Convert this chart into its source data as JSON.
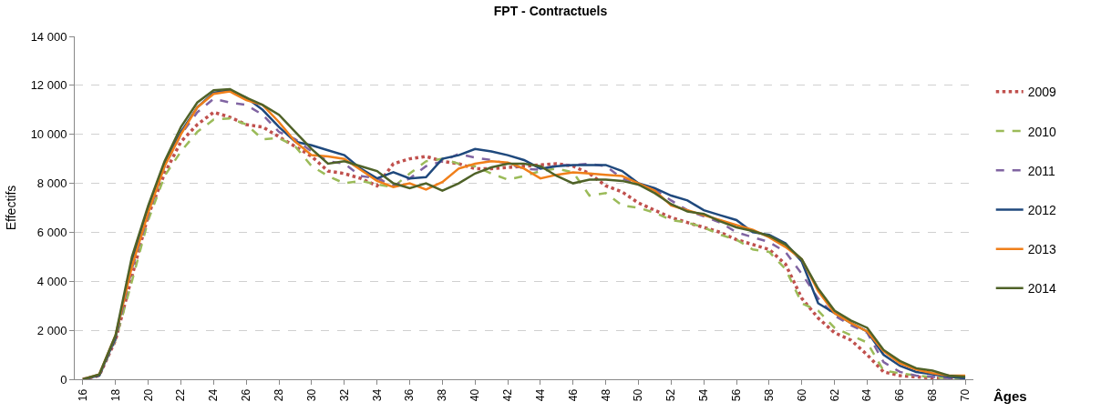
{
  "chart_data": {
    "type": "line",
    "title": "FPT - Contractuels",
    "xlabel": "Âges",
    "ylabel": "Effectifs",
    "x": [
      16,
      17,
      18,
      19,
      20,
      21,
      22,
      23,
      24,
      25,
      26,
      27,
      28,
      29,
      30,
      31,
      32,
      33,
      34,
      35,
      36,
      37,
      38,
      39,
      40,
      41,
      42,
      43,
      44,
      45,
      46,
      47,
      48,
      49,
      50,
      51,
      52,
      53,
      54,
      55,
      56,
      57,
      58,
      59,
      60,
      61,
      62,
      63,
      64,
      65,
      66,
      67,
      68,
      69,
      70
    ],
    "xlim": [
      15.5,
      70.5
    ],
    "xticks": [
      16,
      18,
      20,
      22,
      24,
      26,
      28,
      30,
      32,
      34,
      36,
      38,
      40,
      42,
      44,
      46,
      48,
      50,
      52,
      54,
      56,
      58,
      60,
      62,
      64,
      66,
      68,
      70
    ],
    "ylim": [
      0,
      14000
    ],
    "yticks": [
      {
        "value": 0,
        "label": "0"
      },
      {
        "value": 2000,
        "label": "2 000"
      },
      {
        "value": 4000,
        "label": "4 000"
      },
      {
        "value": 6000,
        "label": "6 000"
      },
      {
        "value": 8000,
        "label": "8 000"
      },
      {
        "value": 10000,
        "label": "10 000"
      },
      {
        "value": 12000,
        "label": "12 000"
      },
      {
        "value": 14000,
        "label": "14 000"
      }
    ],
    "grid": "y",
    "legend": "right",
    "series": [
      {
        "name": "2009",
        "color": "#c0504d",
        "line_style": "dotted",
        "values": [
          0,
          150,
          1600,
          4200,
          6700,
          8400,
          9700,
          10400,
          10900,
          10700,
          10400,
          10300,
          9900,
          9500,
          9100,
          8500,
          8400,
          8200,
          7900,
          8800,
          9000,
          9100,
          8900,
          8800,
          8600,
          8600,
          8650,
          8700,
          8750,
          8800,
          8700,
          8400,
          7900,
          7650,
          7200,
          6900,
          6600,
          6400,
          6200,
          6000,
          5700,
          5500,
          5300,
          4700,
          3300,
          2500,
          1900,
          1600,
          1000,
          300,
          150,
          100,
          50,
          30,
          20
        ]
      },
      {
        "name": "2010",
        "color": "#9bbb59",
        "line_style": "dashed",
        "values": [
          0,
          150,
          1600,
          4000,
          6500,
          8300,
          9300,
          10100,
          10600,
          10650,
          10400,
          9800,
          9850,
          9500,
          8700,
          8300,
          8000,
          8100,
          7950,
          7850,
          8400,
          8900,
          9000,
          8800,
          8700,
          8400,
          8150,
          8300,
          8500,
          8600,
          8450,
          7500,
          7600,
          7100,
          7000,
          6800,
          6500,
          6400,
          6200,
          5900,
          5700,
          5300,
          5200,
          4500,
          3100,
          2800,
          2100,
          1800,
          1500,
          350,
          250,
          150,
          80,
          40,
          20
        ]
      },
      {
        "name": "2011",
        "color": "#8064a2",
        "line_style": "dashed",
        "values": [
          0,
          150,
          1650,
          4500,
          6700,
          8700,
          10000,
          10900,
          11450,
          11300,
          11200,
          10800,
          10100,
          9800,
          9300,
          8900,
          8800,
          8300,
          8200,
          7900,
          8200,
          8700,
          8900,
          9200,
          9050,
          8950,
          8800,
          8600,
          8550,
          8750,
          8750,
          8800,
          8700,
          8200,
          7950,
          7750,
          7300,
          6900,
          6650,
          6400,
          6000,
          5800,
          5600,
          5200,
          4300,
          3300,
          2600,
          2200,
          1900,
          700,
          300,
          150,
          100,
          50,
          30
        ]
      },
      {
        "name": "2012",
        "color": "#1f497d",
        "line_style": "solid",
        "values": [
          0,
          150,
          1700,
          4800,
          7000,
          8800,
          10100,
          11100,
          11700,
          11800,
          11500,
          11000,
          10300,
          9700,
          9550,
          9350,
          9150,
          8600,
          8200,
          8450,
          8200,
          8250,
          9000,
          9150,
          9400,
          9300,
          9150,
          8950,
          8600,
          8700,
          8750,
          8750,
          8750,
          8500,
          8000,
          7800,
          7500,
          7300,
          6900,
          6700,
          6500,
          6000,
          5900,
          5550,
          4800,
          3100,
          2700,
          2300,
          1950,
          1000,
          550,
          300,
          200,
          100,
          50
        ]
      },
      {
        "name": "2013",
        "color": "#f07f1a",
        "line_style": "solid",
        "values": [
          0,
          200,
          1800,
          4600,
          6800,
          8700,
          10000,
          11100,
          11650,
          11750,
          11400,
          11200,
          10500,
          9700,
          9150,
          9100,
          9000,
          8550,
          8100,
          7850,
          8000,
          7750,
          8050,
          8600,
          8800,
          8900,
          8850,
          8600,
          8200,
          8350,
          8450,
          8400,
          8350,
          8300,
          8000,
          7700,
          7100,
          6900,
          6700,
          6500,
          6300,
          6100,
          5800,
          5400,
          4900,
          3600,
          2700,
          2300,
          1950,
          1150,
          650,
          400,
          250,
          150,
          150
        ]
      },
      {
        "name": "2014",
        "color": "#4f6228",
        "line_style": "solid",
        "values": [
          0,
          200,
          1800,
          5000,
          7100,
          8900,
          10300,
          11300,
          11800,
          11850,
          11500,
          11200,
          10800,
          10100,
          9400,
          8800,
          8900,
          8700,
          8500,
          8000,
          7800,
          8000,
          7700,
          8000,
          8400,
          8650,
          8800,
          8800,
          8700,
          8300,
          8000,
          8150,
          8150,
          8100,
          7950,
          7600,
          7150,
          6850,
          6750,
          6450,
          6200,
          6050,
          5850,
          5500,
          4900,
          3700,
          2800,
          2400,
          2100,
          1200,
          750,
          450,
          350,
          150,
          100
        ]
      }
    ]
  }
}
